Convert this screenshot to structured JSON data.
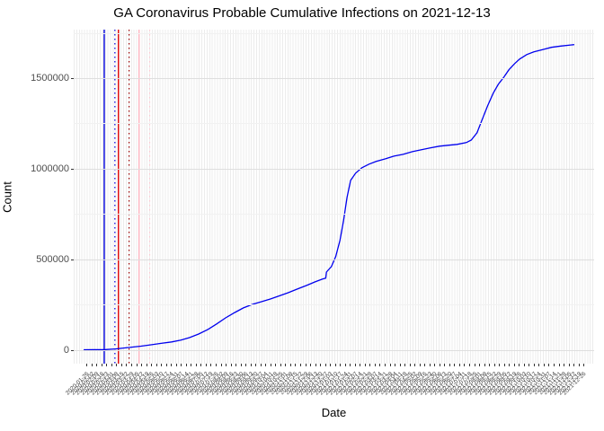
{
  "title": "GA Coronavirus Probable Cumulative Infections on 2021-12-13",
  "x_axis_title": "Date",
  "y_axis_title": "Count",
  "line_color": "#0000ee",
  "chart_data": {
    "type": "line",
    "title": "GA Coronavirus Probable Cumulative Infections on 2021-12-13",
    "xlabel": "Date",
    "ylabel": "Count",
    "ylim": [
      0,
      1770000
    ],
    "x_domain": [
      "2020-01-08",
      "2022-01-10"
    ],
    "grid": "on",
    "legend": "none",
    "series": [
      {
        "name": "Probable cumulative infections",
        "color": "#0000ee",
        "x": [
          "2020-01-22",
          "2020-02-22",
          "2020-03-08",
          "2020-03-27",
          "2020-04-12",
          "2020-04-27",
          "2020-05-10",
          "2020-05-25",
          "2020-06-07",
          "2020-06-19",
          "2020-07-02",
          "2020-07-15",
          "2020-07-27",
          "2020-08-09",
          "2020-08-22",
          "2020-09-03",
          "2020-09-16",
          "2020-09-29",
          "2020-10-11",
          "2020-10-24",
          "2020-11-05",
          "2020-11-18",
          "2020-12-01",
          "2020-12-13",
          "2020-12-23",
          "2020-12-28",
          "2020-12-29",
          "2021-01-05",
          "2021-01-11",
          "2021-01-17",
          "2021-01-22",
          "2021-01-27",
          "2021-02-01",
          "2021-02-08",
          "2021-02-17",
          "2021-02-27",
          "2021-03-09",
          "2021-03-22",
          "2021-04-03",
          "2021-04-16",
          "2021-04-29",
          "2021-05-11",
          "2021-05-24",
          "2021-06-06",
          "2021-06-18",
          "2021-07-01",
          "2021-07-14",
          "2021-07-21",
          "2021-07-29",
          "2021-08-05",
          "2021-08-13",
          "2021-08-21",
          "2021-08-28",
          "2021-09-05",
          "2021-09-12",
          "2021-09-20",
          "2021-09-27",
          "2021-10-07",
          "2021-10-17",
          "2021-11-01",
          "2021-11-11",
          "2021-11-24",
          "2021-12-13"
        ],
        "y": [
          0,
          1000,
          5000,
          13000,
          20000,
          28000,
          35000,
          43000,
          53000,
          67000,
          87000,
          112000,
          142000,
          176000,
          206000,
          231000,
          251000,
          266000,
          280000,
          298000,
          315000,
          335000,
          355000,
          375000,
          390000,
          395000,
          429000,
          459000,
          514000,
          603000,
          712000,
          841000,
          935000,
          975000,
          1005000,
          1025000,
          1040000,
          1054000,
          1069000,
          1079000,
          1094000,
          1104000,
          1114000,
          1124000,
          1129000,
          1134000,
          1144000,
          1158000,
          1198000,
          1268000,
          1347000,
          1417000,
          1466000,
          1506000,
          1546000,
          1580000,
          1605000,
          1630000,
          1645000,
          1660000,
          1670000,
          1677000,
          1685000
        ]
      }
    ],
    "y_ticks": [
      {
        "label": "0",
        "value": 0
      },
      {
        "label": "500000",
        "value": 500000
      },
      {
        "label": "1000000",
        "value": 1000000
      },
      {
        "label": "1500000",
        "value": 1500000
      }
    ],
    "y_minor_gridlines": [
      250000,
      750000,
      1250000,
      1750000
    ],
    "reference_lines": [
      {
        "date": "2020-02-20",
        "color": "#0000dd",
        "style": "solid"
      },
      {
        "date": "2020-03-06",
        "color": "#0000dd",
        "style": "dotted"
      },
      {
        "date": "2020-03-11",
        "color": "#dd0000",
        "style": "solid"
      },
      {
        "date": "2020-03-26",
        "color": "#990000",
        "style": "dotted"
      },
      {
        "date": "2020-04-09",
        "color": "#ffb6c1",
        "style": "solid"
      },
      {
        "date": "2020-04-24",
        "color": "#ffc9d2",
        "style": "dotted"
      }
    ],
    "x_tick_labels": [
      "2020-01-26",
      "2020-02-02",
      "2020-02-09",
      "2020-02-16",
      "2020-02-23",
      "2020-03-01",
      "2020-03-08",
      "2020-03-15",
      "2020-03-22",
      "2020-03-29",
      "2020-04-05",
      "2020-04-12",
      "2020-04-19",
      "2020-04-26",
      "2020-05-03",
      "2020-05-10",
      "2020-05-17",
      "2020-05-24",
      "2020-05-31",
      "2020-06-07",
      "2020-06-14",
      "2020-06-21",
      "2020-06-28",
      "2020-07-05",
      "2020-07-12",
      "2020-07-19",
      "2020-07-26",
      "2020-08-02",
      "2020-08-09",
      "2020-08-16",
      "2020-08-23",
      "2020-08-30",
      "2020-09-06",
      "2020-09-13",
      "2020-09-20",
      "2020-09-27",
      "2020-10-04",
      "2020-10-11",
      "2020-10-18",
      "2020-10-25",
      "2020-11-01",
      "2020-11-08",
      "2020-11-15",
      "2020-11-22",
      "2020-11-29",
      "2020-12-06",
      "2020-12-13",
      "2020-12-20",
      "2020-12-27",
      "2021-01-03",
      "2021-01-10",
      "2021-01-17",
      "2021-01-24",
      "2021-01-31",
      "2021-02-07",
      "2021-02-14",
      "2021-02-21",
      "2021-02-28",
      "2021-03-07",
      "2021-03-14",
      "2021-03-21",
      "2021-03-28",
      "2021-04-04",
      "2021-04-11",
      "2021-04-18",
      "2021-04-25",
      "2021-05-02",
      "2021-05-09",
      "2021-05-16",
      "2021-05-23",
      "2021-05-30",
      "2021-06-06",
      "2021-06-13",
      "2021-06-20",
      "2021-06-27",
      "2021-07-04",
      "2021-07-11",
      "2021-07-18",
      "2021-07-25",
      "2021-08-01",
      "2021-08-08",
      "2021-08-15",
      "2021-08-22",
      "2021-08-29",
      "2021-09-05",
      "2021-09-12",
      "2021-09-19",
      "2021-09-26",
      "2021-10-03",
      "2021-10-10",
      "2021-10-17",
      "2021-10-24",
      "2021-10-31",
      "2021-11-07",
      "2021-11-14",
      "2021-11-21",
      "2021-11-28",
      "2021-12-05",
      "2021-12-12",
      "2021-12-19",
      "2021-12-26"
    ]
  }
}
